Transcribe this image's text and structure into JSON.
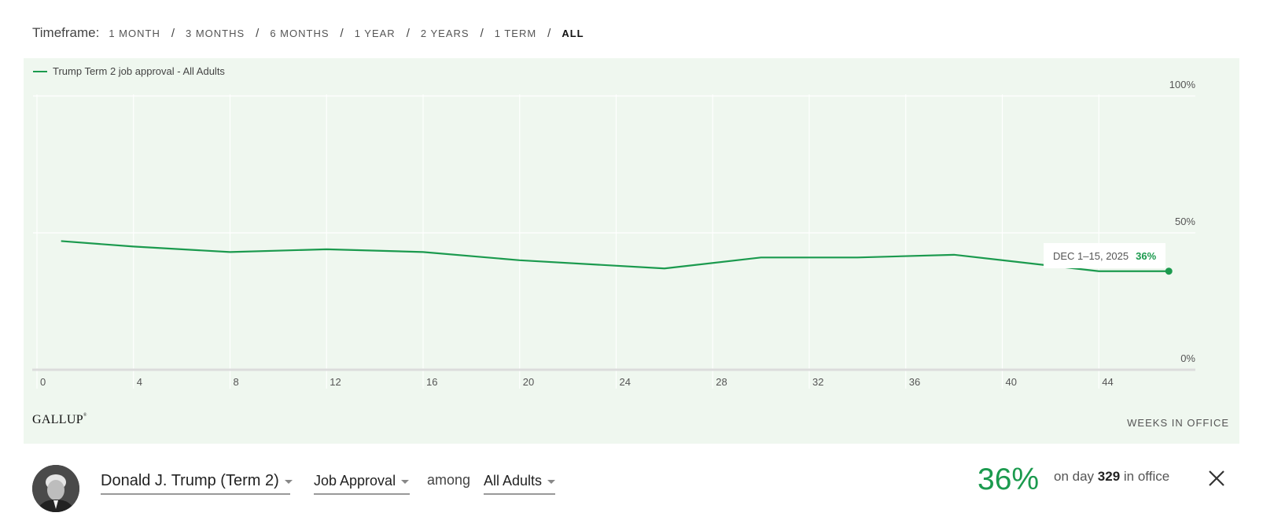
{
  "timeframe": {
    "label": "Timeframe:",
    "options": [
      "1 MONTH",
      "3 MONTHS",
      "6 MONTHS",
      "1 YEAR",
      "2 YEARS",
      "1 TERM",
      "ALL"
    ],
    "active": "ALL"
  },
  "colors": {
    "series": "#1b9a4e",
    "panel_bg": "#eff7ef",
    "grid": "#ffffff",
    "axis": "#dcdcdc"
  },
  "chart_data": {
    "type": "line",
    "series": [
      {
        "name": "Trump Term 2 job approval - All Adults",
        "x": [
          1,
          4,
          8,
          12,
          16,
          20,
          26,
          30,
          34,
          38,
          44,
          46.9
        ],
        "y": [
          47,
          45,
          43,
          44,
          43,
          40,
          37,
          41,
          41,
          42,
          36,
          36
        ]
      }
    ],
    "xlabel": "WEEKS IN OFFICE",
    "x_ticks": [
      0,
      4,
      8,
      12,
      16,
      20,
      24,
      28,
      32,
      36,
      40,
      44
    ],
    "xlim": [
      0,
      48
    ],
    "y_ticks": [
      0,
      50,
      100
    ],
    "y_tick_labels": [
      "0%",
      "50%",
      "100%"
    ],
    "ylim": [
      0,
      100
    ],
    "grid": true,
    "legend_position": "top-left"
  },
  "tooltip": {
    "date": "DEC 1–15, 2025",
    "value": "36%"
  },
  "source": {
    "logo_text": "GALLUP"
  },
  "controls": {
    "president": "Donald J. Trump (Term 2)",
    "metric": "Job Approval",
    "among": "among",
    "population": "All Adults",
    "current_value": "36%",
    "day_prefix": "on day",
    "day_number": "329",
    "day_suffix": "in office"
  }
}
